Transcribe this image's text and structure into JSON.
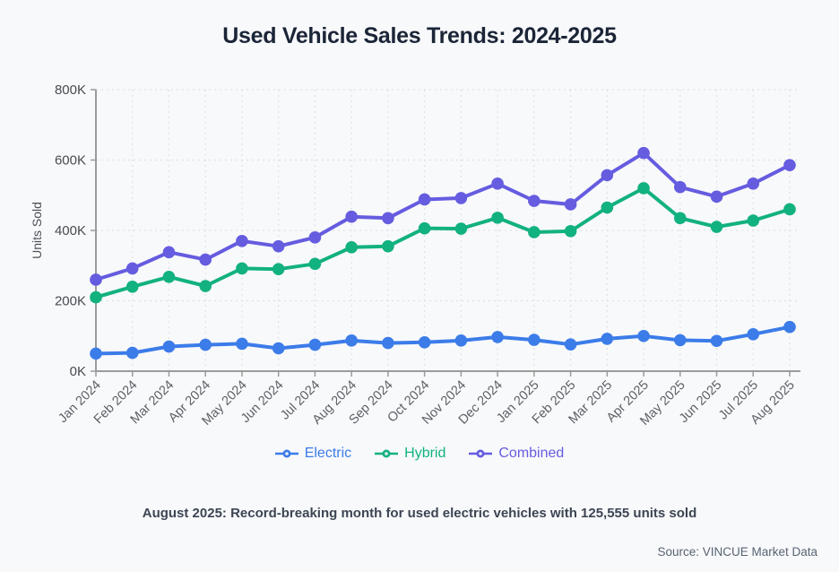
{
  "page": {
    "title": "Used Vehicle Sales Trends: 2024-2025",
    "annotation": "August 2025: Record-breaking month for used electric vehicles with 125,555 units sold",
    "source": "Source: VINCUE Market Data"
  },
  "colors": {
    "electric": "#3b7ce9",
    "hybrid": "#12b180",
    "combined": "#655ce0",
    "grid": "#dfe1e5",
    "axis": "#9b9b9b",
    "background": "#f8f9fb"
  },
  "chart_data": {
    "type": "line",
    "title": "Used Vehicle Sales Trends: 2024-2025",
    "xlabel": "",
    "ylabel": "Units Sold",
    "ylim": [
      0,
      800000
    ],
    "y_ticks": [
      0,
      200000,
      400000,
      600000,
      800000
    ],
    "y_tick_labels": [
      "0K",
      "200K",
      "400K",
      "600K",
      "800K"
    ],
    "grid": true,
    "legend_position": "bottom",
    "categories": [
      "Jan 2024",
      "Feb 2024",
      "Mar 2024",
      "Apr 2024",
      "May 2024",
      "Jun 2024",
      "Jul 2024",
      "Aug 2024",
      "Sep 2024",
      "Oct 2024",
      "Nov 2024",
      "Dec 2024",
      "Jan 2025",
      "Feb 2025",
      "Mar 2025",
      "Apr 2025",
      "May 2025",
      "Jun 2025",
      "Jul 2025",
      "Aug 2025"
    ],
    "series": [
      {
        "name": "Electric",
        "color": "#3b7ce9",
        "values": [
          50000,
          52000,
          70000,
          75000,
          78000,
          65000,
          75000,
          87000,
          80000,
          82000,
          87000,
          97000,
          89000,
          76000,
          92000,
          100000,
          88000,
          86000,
          105000,
          125555
        ]
      },
      {
        "name": "Hybrid",
        "color": "#12b180",
        "values": [
          210000,
          240000,
          268000,
          242000,
          292000,
          290000,
          305000,
          352000,
          355000,
          406000,
          405000,
          436000,
          395000,
          398000,
          465000,
          520000,
          435000,
          410000,
          428000,
          460000
        ]
      },
      {
        "name": "Combined",
        "color": "#655ce0",
        "values": [
          260000,
          292000,
          338000,
          317000,
          370000,
          355000,
          380000,
          439000,
          435000,
          488000,
          492000,
          533000,
          484000,
          474000,
          557000,
          620000,
          523000,
          496000,
          533000,
          585555
        ]
      }
    ]
  }
}
